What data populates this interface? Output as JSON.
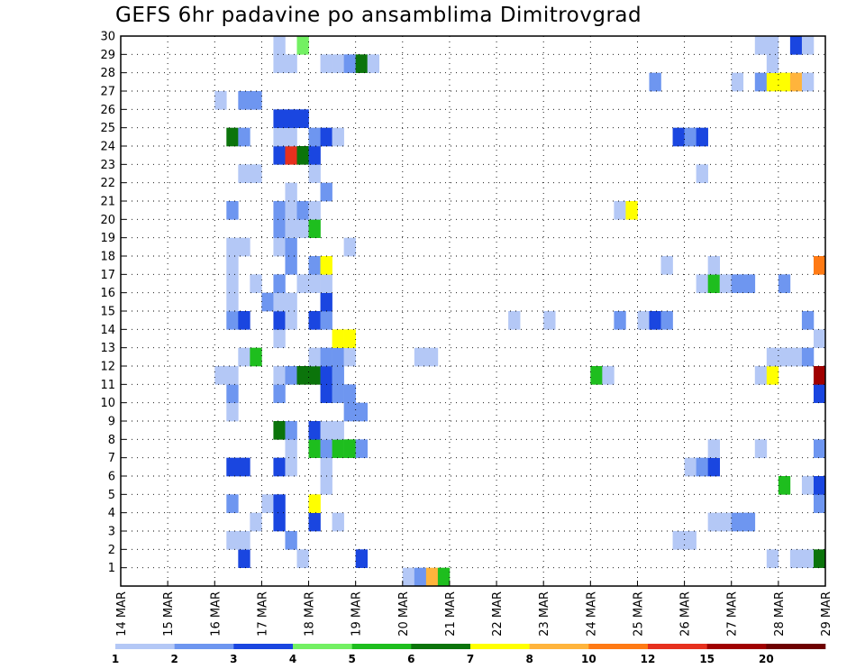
{
  "chart_data": {
    "type": "heatmap",
    "title": "GEFS 6hr padavine po ansamblima Dimitrovgrad",
    "xlabel": "",
    "ylabel": "",
    "x_tick_labels": [
      "14 MAR",
      "15 MAR",
      "16 MAR",
      "17 MAR",
      "18 MAR",
      "19 MAR",
      "20 MAR",
      "21 MAR",
      "22 MAR",
      "23 MAR",
      "24 MAR",
      "25 MAR",
      "26 MAR",
      "27 MAR",
      "28 MAR",
      "29 MAR"
    ],
    "y_tick_labels": [
      "1",
      "2",
      "3",
      "4",
      "5",
      "6",
      "7",
      "8",
      "9",
      "10",
      "11",
      "12",
      "13",
      "14",
      "15",
      "16",
      "17",
      "18",
      "19",
      "20",
      "21",
      "22",
      "23",
      "24",
      "25",
      "26",
      "27",
      "28",
      "29",
      "30"
    ],
    "x_range_days": [
      0,
      15
    ],
    "y_range": [
      0,
      30
    ],
    "steps_per_day": 4,
    "grid": true,
    "colorbar": {
      "labels": [
        "1",
        "2",
        "3",
        "4",
        "5",
        "6",
        "7",
        "8",
        "10",
        "12",
        "15",
        "20"
      ],
      "colors": [
        "#b4c8f6",
        "#6e96f0",
        "#1a46e0",
        "#73f063",
        "#1ebe1e",
        "#0b740b",
        "#ffff00",
        "#ffb43c",
        "#ff7a14",
        "#e6301e",
        "#a00000",
        "#6e0000"
      ]
    },
    "cells": [
      {
        "m": 0,
        "t": 24,
        "c": 1
      },
      {
        "m": 0,
        "t": 25,
        "c": 2
      },
      {
        "m": 0,
        "t": 26,
        "c": 8
      },
      {
        "m": 0,
        "t": 27,
        "c": 5
      },
      {
        "m": 1,
        "t": 10,
        "c": 3
      },
      {
        "m": 1,
        "t": 15,
        "c": 1
      },
      {
        "m": 1,
        "t": 20,
        "c": 3
      },
      {
        "m": 1,
        "t": 55,
        "c": 1
      },
      {
        "m": 1,
        "t": 57,
        "c": 1
      },
      {
        "m": 1,
        "t": 58,
        "c": 1
      },
      {
        "m": 1,
        "t": 59,
        "c": 6
      },
      {
        "m": 2,
        "t": 9,
        "c": 1
      },
      {
        "m": 2,
        "t": 10,
        "c": 1
      },
      {
        "m": 2,
        "t": 14,
        "c": 2
      },
      {
        "m": 2,
        "t": 47,
        "c": 1
      },
      {
        "m": 2,
        "t": 48,
        "c": 1
      },
      {
        "m": 3,
        "t": 11,
        "c": 1
      },
      {
        "m": 3,
        "t": 13,
        "c": 3
      },
      {
        "m": 3,
        "t": 16,
        "c": 3
      },
      {
        "m": 3,
        "t": 18,
        "c": 1
      },
      {
        "m": 3,
        "t": 50,
        "c": 1
      },
      {
        "m": 3,
        "t": 51,
        "c": 1
      },
      {
        "m": 3,
        "t": 52,
        "c": 2
      },
      {
        "m": 3,
        "t": 53,
        "c": 2
      },
      {
        "m": 4,
        "t": 9,
        "c": 2
      },
      {
        "m": 4,
        "t": 12,
        "c": 1
      },
      {
        "m": 4,
        "t": 13,
        "c": 3
      },
      {
        "m": 4,
        "t": 16,
        "c": 7
      },
      {
        "m": 4,
        "t": 59,
        "c": 2
      },
      {
        "m": 5,
        "t": 17,
        "c": 1
      },
      {
        "m": 5,
        "t": 56,
        "c": 5
      },
      {
        "m": 5,
        "t": 58,
        "c": 1
      },
      {
        "m": 5,
        "t": 59,
        "c": 3
      },
      {
        "m": 5,
        "t": 60,
        "c": 3
      },
      {
        "m": 6,
        "t": 9,
        "c": 3
      },
      {
        "m": 6,
        "t": 10,
        "c": 3
      },
      {
        "m": 6,
        "t": 13,
        "c": 3
      },
      {
        "m": 6,
        "t": 14,
        "c": 1
      },
      {
        "m": 6,
        "t": 17,
        "c": 1
      },
      {
        "m": 6,
        "t": 48,
        "c": 1
      },
      {
        "m": 6,
        "t": 49,
        "c": 2
      },
      {
        "m": 6,
        "t": 50,
        "c": 3
      },
      {
        "m": 7,
        "t": 14,
        "c": 1
      },
      {
        "m": 7,
        "t": 16,
        "c": 5
      },
      {
        "m": 7,
        "t": 17,
        "c": 2
      },
      {
        "m": 7,
        "t": 18,
        "c": 5
      },
      {
        "m": 7,
        "t": 19,
        "c": 5
      },
      {
        "m": 7,
        "t": 20,
        "c": 2
      },
      {
        "m": 7,
        "t": 50,
        "c": 1
      },
      {
        "m": 7,
        "t": 54,
        "c": 1
      },
      {
        "m": 7,
        "t": 59,
        "c": 2
      },
      {
        "m": 7,
        "t": 60,
        "c": 5
      },
      {
        "m": 8,
        "t": 13,
        "c": 6
      },
      {
        "m": 8,
        "t": 14,
        "c": 2
      },
      {
        "m": 8,
        "t": 16,
        "c": 3
      },
      {
        "m": 8,
        "t": 17,
        "c": 1
      },
      {
        "m": 8,
        "t": 18,
        "c": 1
      },
      {
        "m": 9,
        "t": 9,
        "c": 1
      },
      {
        "m": 9,
        "t": 19,
        "c": 2
      },
      {
        "m": 9,
        "t": 20,
        "c": 2
      },
      {
        "m": 10,
        "t": 9,
        "c": 2
      },
      {
        "m": 10,
        "t": 13,
        "c": 2
      },
      {
        "m": 10,
        "t": 17,
        "c": 3
      },
      {
        "m": 10,
        "t": 18,
        "c": 2
      },
      {
        "m": 10,
        "t": 19,
        "c": 2
      },
      {
        "m": 10,
        "t": 59,
        "c": 3
      },
      {
        "m": 11,
        "t": 8,
        "c": 1
      },
      {
        "m": 11,
        "t": 9,
        "c": 1
      },
      {
        "m": 11,
        "t": 13,
        "c": 1
      },
      {
        "m": 11,
        "t": 14,
        "c": 2
      },
      {
        "m": 11,
        "t": 15,
        "c": 6
      },
      {
        "m": 11,
        "t": 16,
        "c": 6
      },
      {
        "m": 11,
        "t": 17,
        "c": 3
      },
      {
        "m": 11,
        "t": 18,
        "c": 2
      },
      {
        "m": 11,
        "t": 40,
        "c": 5
      },
      {
        "m": 11,
        "t": 41,
        "c": 1
      },
      {
        "m": 11,
        "t": 54,
        "c": 1
      },
      {
        "m": 11,
        "t": 55,
        "c": 7
      },
      {
        "m": 11,
        "t": 59,
        "c": 11
      },
      {
        "m": 11,
        "t": 60,
        "c": 1
      },
      {
        "m": 12,
        "t": 10,
        "c": 1
      },
      {
        "m": 12,
        "t": 11,
        "c": 5
      },
      {
        "m": 12,
        "t": 16,
        "c": 1
      },
      {
        "m": 12,
        "t": 17,
        "c": 2
      },
      {
        "m": 12,
        "t": 18,
        "c": 2
      },
      {
        "m": 12,
        "t": 19,
        "c": 1
      },
      {
        "m": 12,
        "t": 25,
        "c": 1
      },
      {
        "m": 12,
        "t": 26,
        "c": 1
      },
      {
        "m": 12,
        "t": 55,
        "c": 1
      },
      {
        "m": 12,
        "t": 56,
        "c": 1
      },
      {
        "m": 12,
        "t": 57,
        "c": 1
      },
      {
        "m": 12,
        "t": 58,
        "c": 2
      },
      {
        "m": 13,
        "t": 13,
        "c": 1
      },
      {
        "m": 13,
        "t": 18,
        "c": 7
      },
      {
        "m": 13,
        "t": 19,
        "c": 7
      },
      {
        "m": 13,
        "t": 59,
        "c": 1
      },
      {
        "m": 14,
        "t": 9,
        "c": 2
      },
      {
        "m": 14,
        "t": 10,
        "c": 3
      },
      {
        "m": 14,
        "t": 13,
        "c": 3
      },
      {
        "m": 14,
        "t": 14,
        "c": 1
      },
      {
        "m": 14,
        "t": 16,
        "c": 3
      },
      {
        "m": 14,
        "t": 17,
        "c": 2
      },
      {
        "m": 14,
        "t": 33,
        "c": 1
      },
      {
        "m": 14,
        "t": 36,
        "c": 1
      },
      {
        "m": 14,
        "t": 42,
        "c": 2
      },
      {
        "m": 14,
        "t": 44,
        "c": 1
      },
      {
        "m": 14,
        "t": 45,
        "c": 3
      },
      {
        "m": 14,
        "t": 46,
        "c": 2
      },
      {
        "m": 14,
        "t": 58,
        "c": 2
      },
      {
        "m": 15,
        "t": 9,
        "c": 1
      },
      {
        "m": 15,
        "t": 12,
        "c": 2
      },
      {
        "m": 15,
        "t": 13,
        "c": 1
      },
      {
        "m": 15,
        "t": 14,
        "c": 1
      },
      {
        "m": 15,
        "t": 17,
        "c": 3
      },
      {
        "m": 16,
        "t": 9,
        "c": 1
      },
      {
        "m": 16,
        "t": 11,
        "c": 1
      },
      {
        "m": 16,
        "t": 13,
        "c": 2
      },
      {
        "m": 16,
        "t": 15,
        "c": 1
      },
      {
        "m": 16,
        "t": 16,
        "c": 1
      },
      {
        "m": 16,
        "t": 17,
        "c": 1
      },
      {
        "m": 16,
        "t": 49,
        "c": 1
      },
      {
        "m": 16,
        "t": 50,
        "c": 5
      },
      {
        "m": 16,
        "t": 51,
        "c": 1
      },
      {
        "m": 16,
        "t": 52,
        "c": 2
      },
      {
        "m": 16,
        "t": 53,
        "c": 2
      },
      {
        "m": 16,
        "t": 56,
        "c": 2
      },
      {
        "m": 17,
        "t": 9,
        "c": 1
      },
      {
        "m": 17,
        "t": 14,
        "c": 2
      },
      {
        "m": 17,
        "t": 16,
        "c": 2
      },
      {
        "m": 17,
        "t": 17,
        "c": 7
      },
      {
        "m": 17,
        "t": 46,
        "c": 1
      },
      {
        "m": 17,
        "t": 50,
        "c": 1
      },
      {
        "m": 17,
        "t": 59,
        "c": 9
      },
      {
        "m": 18,
        "t": 9,
        "c": 1
      },
      {
        "m": 18,
        "t": 10,
        "c": 1
      },
      {
        "m": 18,
        "t": 13,
        "c": 1
      },
      {
        "m": 18,
        "t": 14,
        "c": 2
      },
      {
        "m": 18,
        "t": 19,
        "c": 1
      },
      {
        "m": 19,
        "t": 13,
        "c": 2
      },
      {
        "m": 19,
        "t": 14,
        "c": 1
      },
      {
        "m": 19,
        "t": 15,
        "c": 1
      },
      {
        "m": 19,
        "t": 16,
        "c": 5
      },
      {
        "m": 20,
        "t": 9,
        "c": 2
      },
      {
        "m": 20,
        "t": 13,
        "c": 2
      },
      {
        "m": 20,
        "t": 14,
        "c": 1
      },
      {
        "m": 20,
        "t": 15,
        "c": 2
      },
      {
        "m": 20,
        "t": 16,
        "c": 1
      },
      {
        "m": 20,
        "t": 42,
        "c": 1
      },
      {
        "m": 20,
        "t": 43,
        "c": 7
      },
      {
        "m": 21,
        "t": 14,
        "c": 1
      },
      {
        "m": 21,
        "t": 17,
        "c": 2
      },
      {
        "m": 22,
        "t": 10,
        "c": 1
      },
      {
        "m": 22,
        "t": 11,
        "c": 1
      },
      {
        "m": 22,
        "t": 16,
        "c": 1
      },
      {
        "m": 22,
        "t": 49,
        "c": 1
      },
      {
        "m": 23,
        "t": 13,
        "c": 3
      },
      {
        "m": 23,
        "t": 14,
        "c": 10
      },
      {
        "m": 23,
        "t": 15,
        "c": 6
      },
      {
        "m": 23,
        "t": 16,
        "c": 3
      },
      {
        "m": 24,
        "t": 9,
        "c": 6
      },
      {
        "m": 24,
        "t": 10,
        "c": 2
      },
      {
        "m": 24,
        "t": 13,
        "c": 1
      },
      {
        "m": 24,
        "t": 14,
        "c": 1
      },
      {
        "m": 24,
        "t": 16,
        "c": 2
      },
      {
        "m": 24,
        "t": 17,
        "c": 3
      },
      {
        "m": 24,
        "t": 18,
        "c": 1
      },
      {
        "m": 24,
        "t": 47,
        "c": 3
      },
      {
        "m": 24,
        "t": 48,
        "c": 2
      },
      {
        "m": 24,
        "t": 49,
        "c": 3
      },
      {
        "m": 25,
        "t": 13,
        "c": 3
      },
      {
        "m": 25,
        "t": 14,
        "c": 3
      },
      {
        "m": 25,
        "t": 15,
        "c": 3
      },
      {
        "m": 26,
        "t": 8,
        "c": 1
      },
      {
        "m": 26,
        "t": 10,
        "c": 2
      },
      {
        "m": 26,
        "t": 11,
        "c": 2
      },
      {
        "m": 27,
        "t": 45,
        "c": 2
      },
      {
        "m": 27,
        "t": 52,
        "c": 1
      },
      {
        "m": 27,
        "t": 54,
        "c": 2
      },
      {
        "m": 27,
        "t": 55,
        "c": 7
      },
      {
        "m": 27,
        "t": 56,
        "c": 7
      },
      {
        "m": 27,
        "t": 57,
        "c": 8
      },
      {
        "m": 27,
        "t": 58,
        "c": 1
      },
      {
        "m": 28,
        "t": 13,
        "c": 1
      },
      {
        "m": 28,
        "t": 14,
        "c": 1
      },
      {
        "m": 28,
        "t": 17,
        "c": 1
      },
      {
        "m": 28,
        "t": 18,
        "c": 1
      },
      {
        "m": 28,
        "t": 19,
        "c": 2
      },
      {
        "m": 28,
        "t": 20,
        "c": 6
      },
      {
        "m": 28,
        "t": 21,
        "c": 1
      },
      {
        "m": 28,
        "t": 55,
        "c": 1
      },
      {
        "m": 29,
        "t": 13,
        "c": 1
      },
      {
        "m": 29,
        "t": 15,
        "c": 4
      },
      {
        "m": 29,
        "t": 54,
        "c": 1
      },
      {
        "m": 29,
        "t": 55,
        "c": 1
      },
      {
        "m": 29,
        "t": 57,
        "c": 3
      },
      {
        "m": 29,
        "t": 58,
        "c": 1
      }
    ]
  }
}
